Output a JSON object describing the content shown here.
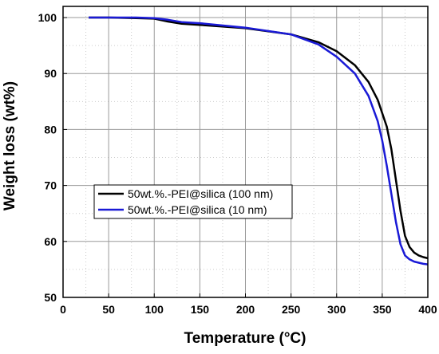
{
  "chart_data": {
    "type": "line",
    "title": "",
    "xlabel": "Temperature (°C)",
    "ylabel": "Weight loss (wt%)",
    "xlim": [
      0,
      400
    ],
    "ylim": [
      50,
      102
    ],
    "x_ticks": [
      "0",
      "50",
      "100",
      "150",
      "200",
      "250",
      "300",
      "350",
      "400"
    ],
    "y_ticks": [
      "50",
      "60",
      "70",
      "80",
      "90",
      "100"
    ],
    "grid": "on",
    "legend_position": "center-left",
    "series": [
      {
        "name": "50wt.%.-PEI@silica (100 nm)",
        "color": "#000000",
        "x": [
          28,
          50,
          80,
          100,
          115,
          130,
          150,
          200,
          250,
          280,
          300,
          320,
          335,
          345,
          355,
          360,
          365,
          370,
          375,
          380,
          385,
          390,
          395,
          400
        ],
        "y": [
          100,
          100,
          99.9,
          99.8,
          99.3,
          98.9,
          98.7,
          98.1,
          97.0,
          95.6,
          94.0,
          91.5,
          88.5,
          85.3,
          80.5,
          76.5,
          71.0,
          65.5,
          61.0,
          59.0,
          58.0,
          57.5,
          57.2,
          57.0
        ]
      },
      {
        "name": "50wt.%.-PEI@silica (10 nm)",
        "color": "#1a1ad6",
        "x": [
          28,
          50,
          80,
          100,
          115,
          130,
          150,
          200,
          250,
          280,
          300,
          320,
          335,
          345,
          350,
          355,
          360,
          365,
          370,
          375,
          380,
          385,
          390,
          395,
          400
        ],
        "y": [
          100,
          100,
          100,
          99.9,
          99.6,
          99.2,
          99.0,
          98.2,
          97.0,
          95.2,
          93.0,
          90.0,
          86.0,
          81.5,
          78.0,
          73.5,
          68.5,
          63.5,
          59.5,
          57.5,
          56.8,
          56.4,
          56.2,
          56.0,
          55.9
        ]
      }
    ]
  }
}
